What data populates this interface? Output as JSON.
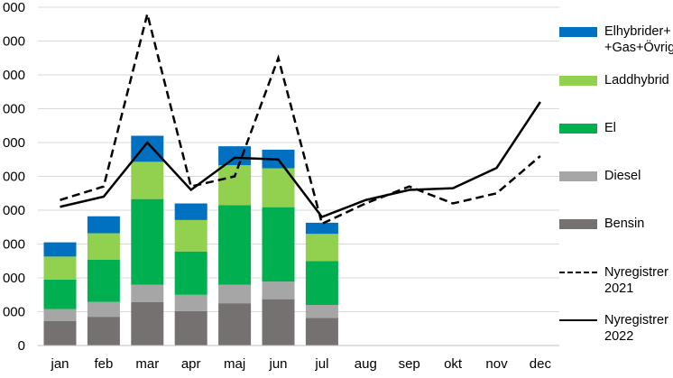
{
  "chart_data": {
    "type": "bar",
    "categories": [
      "jan",
      "feb",
      "mar",
      "apr",
      "maj",
      "jun",
      "jul",
      "aug",
      "sep",
      "okt",
      "nov",
      "dec"
    ],
    "y_tick_labels": [
      "0",
      "000",
      "000",
      "000",
      "000",
      "000",
      "000",
      "000",
      "000",
      "000",
      "000"
    ],
    "ylim": [
      0,
      10
    ],
    "grid": true,
    "legend_position": "right",
    "series": [
      {
        "name": "Bensin",
        "kind": "bar",
        "color": "#767171",
        "values": [
          0.72,
          0.85,
          1.28,
          1.02,
          1.25,
          1.37,
          0.82,
          null,
          null,
          null,
          null,
          null
        ]
      },
      {
        "name": "Diesel",
        "kind": "bar",
        "color": "#a6a6a6",
        "values": [
          0.36,
          0.44,
          0.52,
          0.48,
          0.55,
          0.52,
          0.38,
          null,
          null,
          null,
          null,
          null
        ]
      },
      {
        "name": "El",
        "kind": "bar",
        "color": "#00b050",
        "values": [
          0.87,
          1.25,
          2.53,
          1.28,
          2.35,
          2.2,
          1.3,
          null,
          null,
          null,
          null,
          null
        ]
      },
      {
        "name": "Laddhybrid",
        "kind": "bar",
        "color": "#92d050",
        "values": [
          0.68,
          0.78,
          1.1,
          0.93,
          1.18,
          1.15,
          0.8,
          null,
          null,
          null,
          null,
          null
        ]
      },
      {
        "name": "Elhybrider+\n+Gas+Övrig",
        "kind": "bar",
        "color": "#0070c0",
        "values": [
          0.42,
          0.5,
          0.77,
          0.49,
          0.56,
          0.55,
          0.33,
          null,
          null,
          null,
          null,
          null
        ]
      },
      {
        "name": "Nyregistrer\n2021",
        "kind": "line",
        "style": "dashed",
        "color": "#000000",
        "values": [
          4.3,
          4.7,
          9.8,
          4.7,
          5.0,
          8.5,
          3.6,
          4.2,
          4.7,
          4.2,
          4.5,
          5.6
        ]
      },
      {
        "name": "Nyregistrer\n2022",
        "kind": "line",
        "style": "solid",
        "color": "#000000",
        "values": [
          4.1,
          4.4,
          6.0,
          4.6,
          5.55,
          5.5,
          3.8,
          4.3,
          4.6,
          4.65,
          5.25,
          7.2
        ]
      }
    ]
  }
}
